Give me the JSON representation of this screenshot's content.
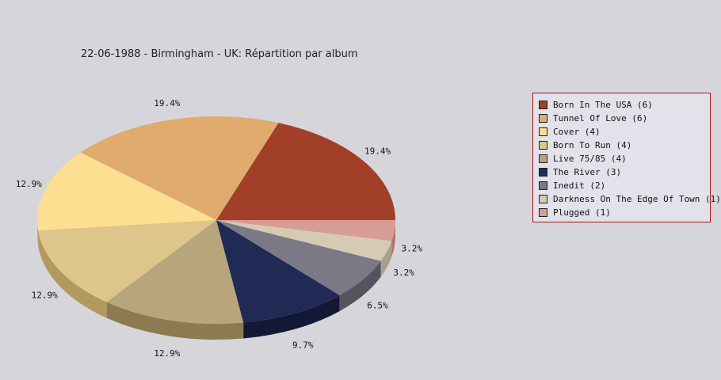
{
  "chart_data": {
    "type": "pie",
    "title": "22-06-1988 - Birmingham - UK:  Répartition par album",
    "slices": [
      {
        "label": "Born In The USA",
        "count": 6,
        "percent_label": "19.4%",
        "color": "#a23f28",
        "side": "#7a0d06"
      },
      {
        "label": "Tunnel Of Love",
        "count": 6,
        "percent_label": "19.4%",
        "color": "#e1ab6e",
        "side": "#b07a38"
      },
      {
        "label": "Cover",
        "count": 4,
        "percent_label": "12.9%",
        "color": "#fedf91",
        "side": "#d3b266"
      },
      {
        "label": "Born To Run",
        "count": 4,
        "percent_label": "12.9%",
        "color": "#dec68a",
        "side": "#b29a5e"
      },
      {
        "label": "Live 75/85",
        "count": 4,
        "percent_label": "12.9%",
        "color": "#b8a57c",
        "side": "#8c7a52"
      },
      {
        "label": "The River",
        "count": 3,
        "percent_label": "9.7%",
        "color": "#212955",
        "side": "#121835"
      },
      {
        "label": "Inedit",
        "count": 2,
        "percent_label": "6.5%",
        "color": "#7a7985",
        "side": "#55545e"
      },
      {
        "label": "Darkness On The Edge Of Town",
        "count": 1,
        "percent_label": "3.2%",
        "color": "#d5cbb4",
        "side": "#aaa08a"
      },
      {
        "label": "Plugged",
        "count": 1,
        "percent_label": "3.2%",
        "color": "#d89d96",
        "side": "#ae736c"
      }
    ],
    "legend": {
      "placement": "right",
      "entries": [
        "Born In The USA (6)",
        "Tunnel Of Love (6)",
        "Cover (4)",
        "Born To Run (4)",
        "Live 75/85 (4)",
        "The River (3)",
        "Inedit (2)",
        "Darkness On The Edge Of Town (1)",
        "Plugged (1)"
      ]
    }
  }
}
